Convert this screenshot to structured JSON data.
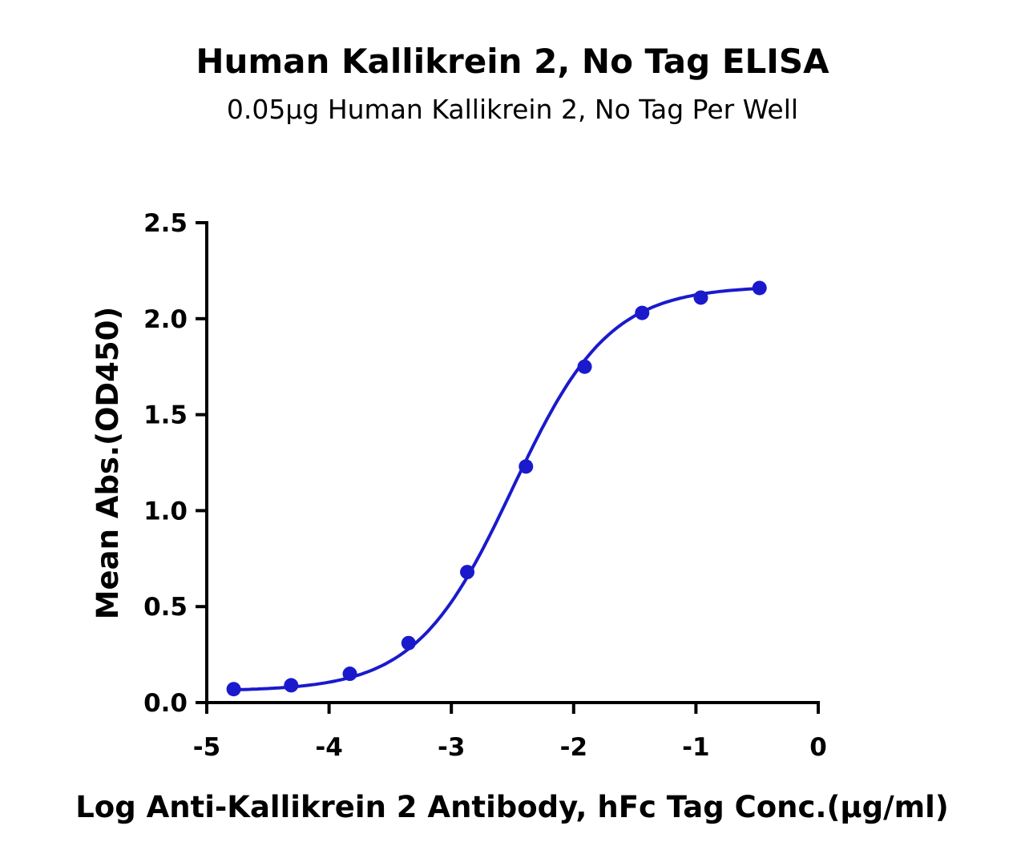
{
  "chart_data": {
    "type": "scatter",
    "title": "Human Kallikrein 2, No Tag ELISA",
    "subtitle": "0.05μg Human Kallikrein 2, No Tag Per Well",
    "xlabel": "Log Anti-Kallikrein 2 Antibody, hFc Tag Conc.(μg/ml)",
    "ylabel": "Mean Abs.(OD450)",
    "xlim": [
      -5,
      0
    ],
    "ylim": [
      0,
      2.5
    ],
    "xticks": [
      "-5",
      "-4",
      "-3",
      "-2",
      "-1",
      "0"
    ],
    "yticks": [
      "0.0",
      "0.5",
      "1.0",
      "1.5",
      "2.0",
      "2.5"
    ],
    "grid": false,
    "fit_curve": "sigmoidal",
    "color": "#1a1acc",
    "series": [
      {
        "x": [
          -4.78,
          -4.31,
          -3.83,
          -3.35,
          -2.87,
          -2.39,
          -1.91,
          -1.44,
          -0.96,
          -0.48
        ],
        "y": [
          0.07,
          0.09,
          0.15,
          0.31,
          0.68,
          1.23,
          1.75,
          2.03,
          2.11,
          2.16
        ]
      }
    ]
  }
}
